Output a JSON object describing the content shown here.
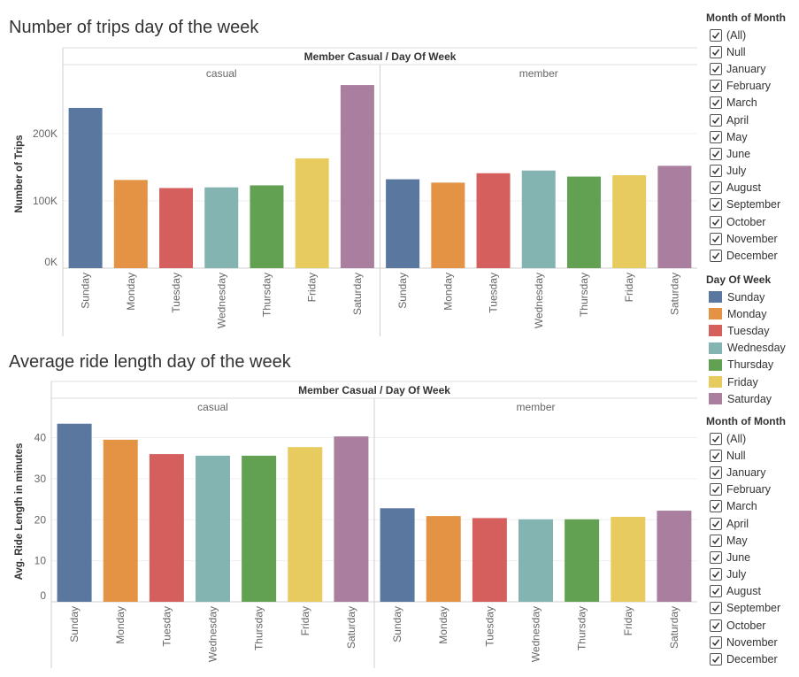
{
  "titles": {
    "trips": "Number of trips day of the week",
    "ride": "Average ride length day of the week"
  },
  "legend_days": {
    "title": "Day Of Week",
    "items": [
      {
        "label": "Sunday",
        "color": "#59779f"
      },
      {
        "label": "Monday",
        "color": "#e39343"
      },
      {
        "label": "Tuesday",
        "color": "#d55f5c"
      },
      {
        "label": "Wednesday",
        "color": "#84b4b2"
      },
      {
        "label": "Thursday",
        "color": "#62a052"
      },
      {
        "label": "Friday",
        "color": "#e8cb5e"
      },
      {
        "label": "Saturday",
        "color": "#a97e9f"
      }
    ]
  },
  "filter_top": {
    "title": "Month of Month",
    "items": [
      "(All)",
      "Null",
      "January",
      "February",
      "March",
      "April",
      "May",
      "June",
      "July",
      "August",
      "September",
      "October",
      "November",
      "December"
    ]
  },
  "filter_bottom": {
    "title": "Month of Month",
    "items": [
      "(All)",
      "Null",
      "January",
      "February",
      "March",
      "April",
      "May",
      "June",
      "July",
      "August",
      "September",
      "October",
      "November",
      "December"
    ]
  },
  "chart_data": [
    {
      "type": "bar",
      "title": "Number of trips day of the week",
      "header": "Member Casual / Day Of Week",
      "ylabel": "Number of Trips",
      "ylim": [
        0,
        280000
      ],
      "yticks": [
        0,
        100000,
        200000
      ],
      "ytick_labels": [
        "0K",
        "100K",
        "200K"
      ],
      "panels": [
        "casual",
        "member"
      ],
      "categories": [
        "Sunday",
        "Monday",
        "Tuesday",
        "Wednesday",
        "Thursday",
        "Friday",
        "Saturday"
      ],
      "series": [
        {
          "name": "casual",
          "values": [
            238000,
            131000,
            119000,
            120000,
            123000,
            163000,
            272000
          ]
        },
        {
          "name": "member",
          "values": [
            132000,
            127000,
            141000,
            145000,
            136000,
            138000,
            152000
          ]
        }
      ]
    },
    {
      "type": "bar",
      "title": "Average ride length day of the week",
      "header": "Member Casual / Day Of Week",
      "ylabel": "Avg. Ride Length in minutes",
      "ylim": [
        0,
        44
      ],
      "yticks": [
        0,
        10,
        20,
        30,
        40
      ],
      "ytick_labels": [
        "0",
        "10",
        "20",
        "30",
        "40"
      ],
      "panels": [
        "casual",
        "member"
      ],
      "categories": [
        "Sunday",
        "Monday",
        "Tuesday",
        "Wednesday",
        "Thursday",
        "Friday",
        "Saturday"
      ],
      "series": [
        {
          "name": "casual",
          "values": [
            43.4,
            39.5,
            36.0,
            35.6,
            35.6,
            37.7,
            40.3
          ]
        },
        {
          "name": "member",
          "values": [
            22.8,
            20.9,
            20.4,
            20.1,
            20.1,
            20.7,
            22.2
          ]
        }
      ]
    }
  ]
}
